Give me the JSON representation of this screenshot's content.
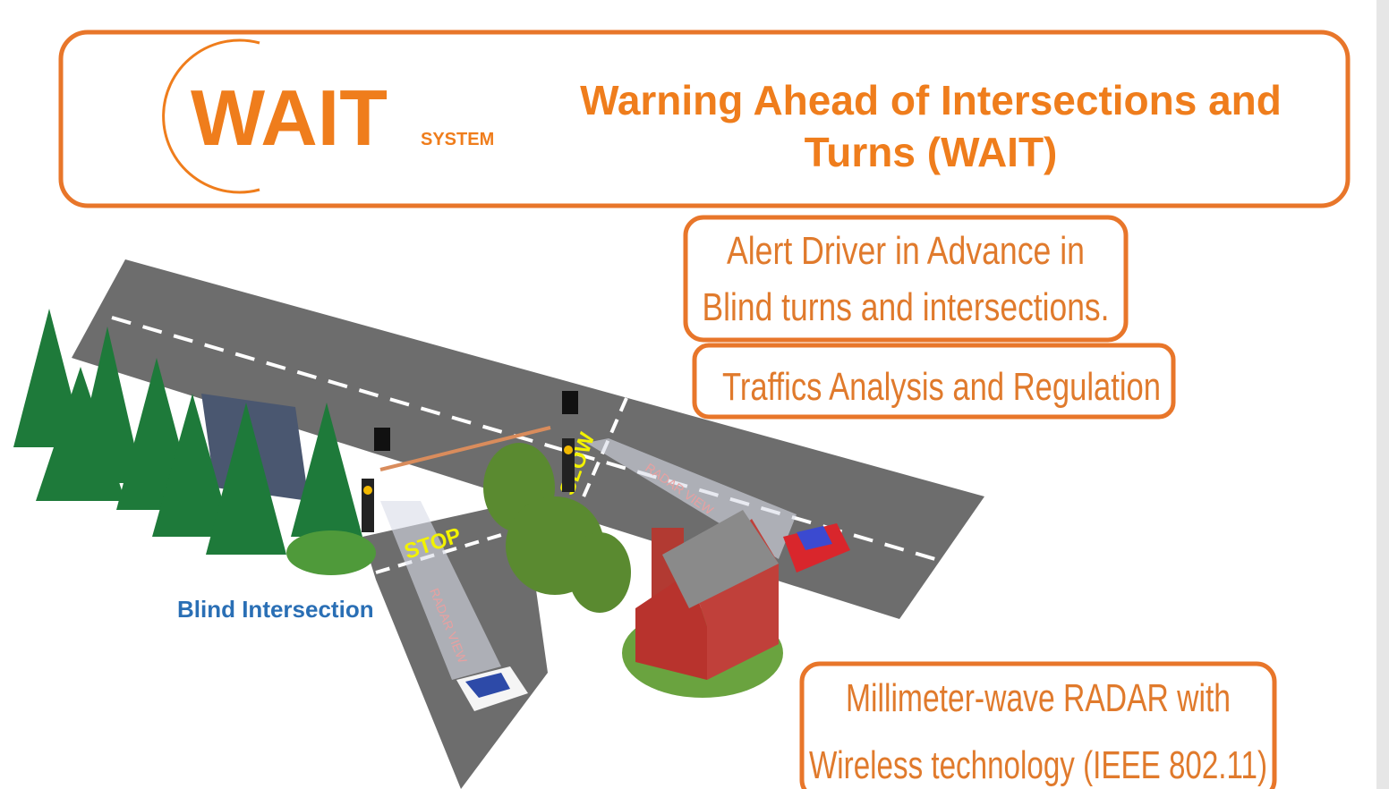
{
  "header": {
    "logo": "WAIT",
    "logo_sub": "SYSTEM",
    "title_lines": [
      "Warning Ahead of Intersections and",
      "Turns (WAIT)"
    ]
  },
  "callouts": [
    {
      "lines": [
        "Alert Driver in Advance in",
        "Blind turns and intersections."
      ]
    },
    {
      "lines": [
        "Traffics Analysis and Regulation"
      ]
    },
    {
      "lines": [
        "Millimeter-wave RADAR with",
        "Wireless technology (IEEE 802.11)"
      ]
    }
  ],
  "scene": {
    "label": "Blind Intersection",
    "road_signs": [
      "STOP",
      "SLOW"
    ],
    "radar_labels": [
      "RADAR VIEW",
      "RADAR VIEW"
    ]
  }
}
